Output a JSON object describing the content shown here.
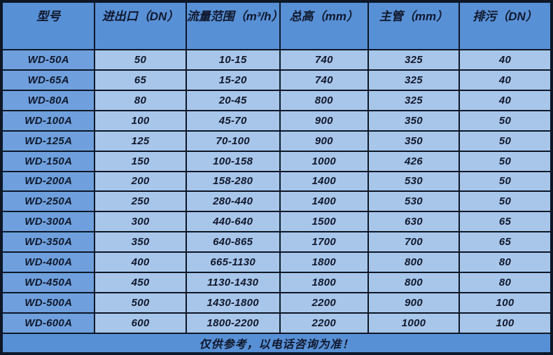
{
  "colors": {
    "border": "#0d1727",
    "header_bg": "#5890d6",
    "model_column_bg": "#6fa0dd",
    "data_cell_bg": "#a8c6ea",
    "footer_bg": "#5890d6",
    "text": "#10182c"
  },
  "table": {
    "columns": [
      {
        "key": "model",
        "label": "型号"
      },
      {
        "key": "inlet_outlet_dn",
        "label": "进出口（DN）"
      },
      {
        "key": "flow_range_m3h",
        "label": "流量范围（m³/h）"
      },
      {
        "key": "total_height_mm",
        "label": "总高（mm）"
      },
      {
        "key": "main_pipe_mm",
        "label": "主管（mm）"
      },
      {
        "key": "drain_dn",
        "label": "排污（DN）"
      }
    ],
    "rows": [
      [
        "WD-50A",
        "50",
        "10-15",
        "740",
        "325",
        "40"
      ],
      [
        "WD-65A",
        "65",
        "15-20",
        "740",
        "325",
        "40"
      ],
      [
        "WD-80A",
        "80",
        "20-45",
        "800",
        "325",
        "40"
      ],
      [
        "WD-100A",
        "100",
        "45-70",
        "900",
        "350",
        "50"
      ],
      [
        "WD-125A",
        "125",
        "70-100",
        "900",
        "350",
        "50"
      ],
      [
        "WD-150A",
        "150",
        "100-158",
        "1000",
        "426",
        "50"
      ],
      [
        "WD-200A",
        "200",
        "158-280",
        "1400",
        "530",
        "50"
      ],
      [
        "WD-250A",
        "250",
        "280-440",
        "1400",
        "530",
        "50"
      ],
      [
        "WD-300A",
        "300",
        "440-640",
        "1500",
        "630",
        "65"
      ],
      [
        "WD-350A",
        "350",
        "640-865",
        "1700",
        "700",
        "65"
      ],
      [
        "WD-400A",
        "400",
        "665-1130",
        "1800",
        "800",
        "80"
      ],
      [
        "WD-450A",
        "450",
        "1130-1430",
        "1800",
        "800",
        "80"
      ],
      [
        "WD-500A",
        "500",
        "1430-1800",
        "2200",
        "900",
        "100"
      ],
      [
        "WD-600A",
        "600",
        "1800-2200",
        "2200",
        "1000",
        "100"
      ]
    ],
    "footer_note": "仅供参考，以电话咨询为准！"
  }
}
